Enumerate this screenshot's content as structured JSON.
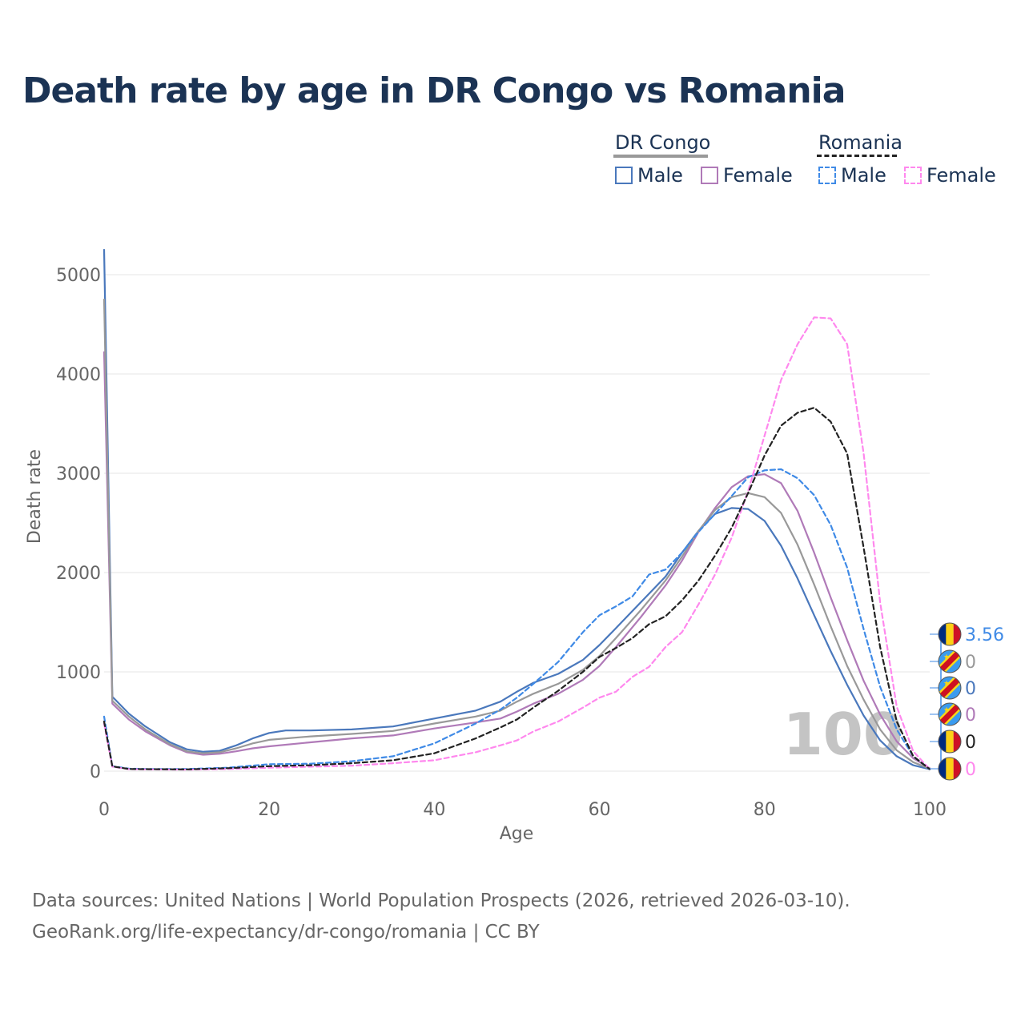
{
  "title": "Death rate by age in DR Congo vs Romania",
  "legend": {
    "groups": [
      {
        "name": "DR Congo",
        "line_color": "#999999",
        "line_style": "solid",
        "items": [
          {
            "label": "Male",
            "color": "#4a78bc",
            "style": "solid"
          },
          {
            "label": "Female",
            "color": "#b07ab8",
            "style": "solid"
          }
        ]
      },
      {
        "name": "Romania",
        "line_color": "#222222",
        "line_style": "dashed",
        "items": [
          {
            "label": "Male",
            "color": "#3f8ae6",
            "style": "dashed"
          },
          {
            "label": "Female",
            "color": "#ff88ee",
            "style": "dashed"
          }
        ]
      }
    ]
  },
  "sources": {
    "line1": "Data sources: United Nations | World Population Prospects (2026, retrieved 2026-03-10).",
    "line2": "GeoRank.org/life-expectancy/dr-congo/romania | CC BY"
  },
  "chart_data": {
    "type": "line",
    "title": "Death rate by age in DR Congo vs Romania",
    "xlabel": "Age",
    "ylabel": "Death rate",
    "xlim": [
      0,
      100
    ],
    "ylim": [
      0,
      5000
    ],
    "xticks": [
      0,
      20,
      40,
      60,
      80,
      100
    ],
    "yticks": [
      0,
      1000,
      2000,
      3000,
      4000,
      5000
    ],
    "grid": true,
    "watermark": "100",
    "series": [
      {
        "name": "DR Congo Male",
        "color": "#4a78bc",
        "dash": false,
        "x": [
          0,
          1,
          3,
          5,
          8,
          10,
          12,
          14,
          16,
          18,
          20,
          22,
          25,
          30,
          35,
          40,
          45,
          48,
          50,
          52,
          55,
          58,
          60,
          62,
          65,
          68,
          70,
          72,
          74,
          76,
          78,
          80,
          82,
          84,
          86,
          88,
          90,
          92,
          94,
          96,
          98,
          100
        ],
        "y": [
          5250,
          750,
          580,
          450,
          290,
          220,
          195,
          205,
          260,
          330,
          385,
          410,
          410,
          420,
          450,
          530,
          610,
          700,
          800,
          890,
          980,
          1120,
          1270,
          1440,
          1700,
          1960,
          2200,
          2420,
          2590,
          2650,
          2640,
          2520,
          2270,
          1940,
          1570,
          1210,
          870,
          560,
          310,
          150,
          60,
          20
        ]
      },
      {
        "name": "DR Congo Female",
        "color": "#b07ab8",
        "dash": false,
        "x": [
          0,
          1,
          3,
          5,
          8,
          10,
          12,
          14,
          16,
          18,
          20,
          25,
          30,
          35,
          40,
          45,
          48,
          50,
          52,
          55,
          58,
          60,
          62,
          65,
          68,
          70,
          72,
          74,
          76,
          78,
          80,
          82,
          84,
          86,
          88,
          90,
          92,
          94,
          96,
          98,
          100
        ],
        "y": [
          4220,
          680,
          520,
          400,
          260,
          190,
          165,
          175,
          200,
          230,
          250,
          290,
          330,
          360,
          430,
          490,
          530,
          600,
          680,
          780,
          920,
          1060,
          1250,
          1550,
          1870,
          2120,
          2410,
          2650,
          2860,
          2970,
          2990,
          2900,
          2620,
          2200,
          1750,
          1320,
          910,
          570,
          300,
          130,
          30
        ]
      },
      {
        "name": "DR Congo",
        "color": "#999999",
        "dash": false,
        "x": [
          0,
          1,
          3,
          5,
          8,
          10,
          12,
          14,
          16,
          18,
          20,
          25,
          30,
          35,
          40,
          45,
          48,
          50,
          52,
          55,
          58,
          60,
          62,
          65,
          68,
          70,
          72,
          74,
          76,
          78,
          80,
          82,
          84,
          86,
          88,
          90,
          92,
          94,
          96,
          98,
          100
        ],
        "y": [
          4750,
          710,
          550,
          420,
          270,
          200,
          180,
          190,
          230,
          280,
          315,
          350,
          375,
          405,
          480,
          550,
          610,
          700,
          780,
          880,
          1020,
          1160,
          1340,
          1620,
          1920,
          2160,
          2420,
          2630,
          2760,
          2800,
          2760,
          2600,
          2280,
          1880,
          1460,
          1060,
          720,
          420,
          210,
          90,
          25
        ]
      },
      {
        "name": "Romania Male",
        "color": "#3f8ae6",
        "dash": true,
        "x": [
          0,
          1,
          3,
          5,
          10,
          15,
          20,
          25,
          30,
          35,
          40,
          45,
          48,
          50,
          52,
          55,
          58,
          60,
          62,
          64,
          66,
          68,
          70,
          72,
          74,
          76,
          78,
          80,
          82,
          84,
          86,
          88,
          90,
          92,
          94,
          96,
          98,
          100
        ],
        "y": [
          550,
          50,
          25,
          22,
          22,
          35,
          70,
          75,
          100,
          150,
          280,
          480,
          620,
          740,
          880,
          1100,
          1400,
          1570,
          1660,
          1760,
          1980,
          2030,
          2200,
          2410,
          2590,
          2770,
          2960,
          3030,
          3040,
          2950,
          2780,
          2480,
          2050,
          1430,
          850,
          420,
          150,
          20
        ]
      },
      {
        "name": "Romania Female",
        "color": "#ff88ee",
        "dash": true,
        "x": [
          0,
          1,
          3,
          5,
          10,
          15,
          20,
          25,
          30,
          35,
          40,
          45,
          48,
          50,
          52,
          55,
          58,
          60,
          62,
          64,
          66,
          68,
          70,
          72,
          74,
          76,
          78,
          80,
          82,
          84,
          86,
          88,
          90,
          92,
          94,
          96,
          98,
          100
        ],
        "y": [
          480,
          45,
          20,
          18,
          15,
          22,
          35,
          45,
          55,
          80,
          110,
          190,
          260,
          310,
          400,
          500,
          640,
          740,
          800,
          950,
          1050,
          1250,
          1400,
          1680,
          1980,
          2350,
          2820,
          3380,
          3940,
          4300,
          4570,
          4560,
          4300,
          3200,
          1700,
          650,
          200,
          20
        ]
      },
      {
        "name": "Romania",
        "color": "#222222",
        "dash": true,
        "x": [
          0,
          1,
          3,
          5,
          10,
          15,
          20,
          25,
          30,
          35,
          40,
          45,
          48,
          50,
          52,
          55,
          58,
          60,
          62,
          64,
          66,
          68,
          70,
          72,
          74,
          76,
          78,
          80,
          82,
          84,
          86,
          88,
          90,
          92,
          94,
          96,
          98,
          100
        ],
        "y": [
          500,
          48,
          22,
          20,
          18,
          30,
          50,
          60,
          80,
          110,
          180,
          330,
          440,
          520,
          640,
          810,
          1000,
          1150,
          1240,
          1340,
          1480,
          1560,
          1720,
          1920,
          2170,
          2450,
          2800,
          3180,
          3480,
          3610,
          3660,
          3520,
          3200,
          2250,
          1250,
          500,
          150,
          20
        ]
      }
    ],
    "end_labels": [
      {
        "value": "3.56",
        "color": "#3f8ae6",
        "flag": "romania"
      },
      {
        "value": "0",
        "color": "#999999",
        "flag": "drcongo"
      },
      {
        "value": "0",
        "color": "#4a78bc",
        "flag": "drcongo"
      },
      {
        "value": "0",
        "color": "#b07ab8",
        "flag": "drcongo"
      },
      {
        "value": "0",
        "color": "#222222",
        "flag": "romania"
      },
      {
        "value": "0",
        "color": "#ff88ee",
        "flag": "romania"
      }
    ]
  }
}
